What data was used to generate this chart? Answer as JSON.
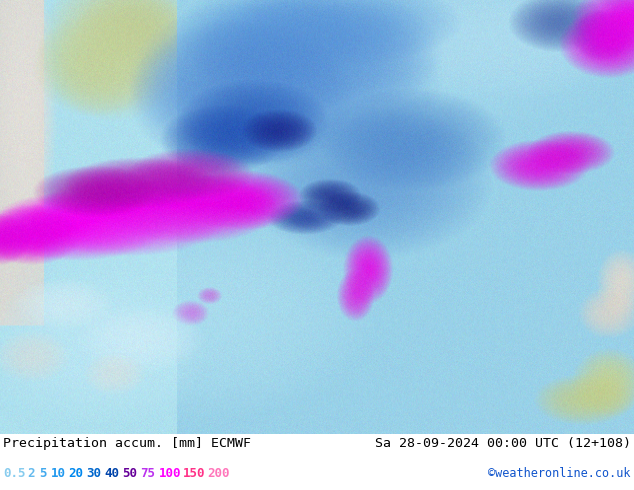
{
  "title_left": "Precipitation accum. [mm] ECMWF",
  "title_right": "Sa 28-09-2024 00:00 UTC (12+108)",
  "credit": "©weatheronline.co.uk",
  "legend_values": [
    "0.5",
    "2",
    "5",
    "10",
    "20",
    "30",
    "40",
    "50",
    "75",
    "100",
    "150",
    "200"
  ],
  "legend_text_colors": [
    "#88CCEE",
    "#66BBEE",
    "#44AAEE",
    "#2299EE",
    "#0088EE",
    "#0066CC",
    "#0044AA",
    "#660099",
    "#BB33EE",
    "#FF00FF",
    "#FF3388",
    "#FF77BB"
  ],
  "title_color": "#000000",
  "credit_color": "#1155CC",
  "figsize": [
    6.34,
    4.9
  ],
  "dpi": 100
}
